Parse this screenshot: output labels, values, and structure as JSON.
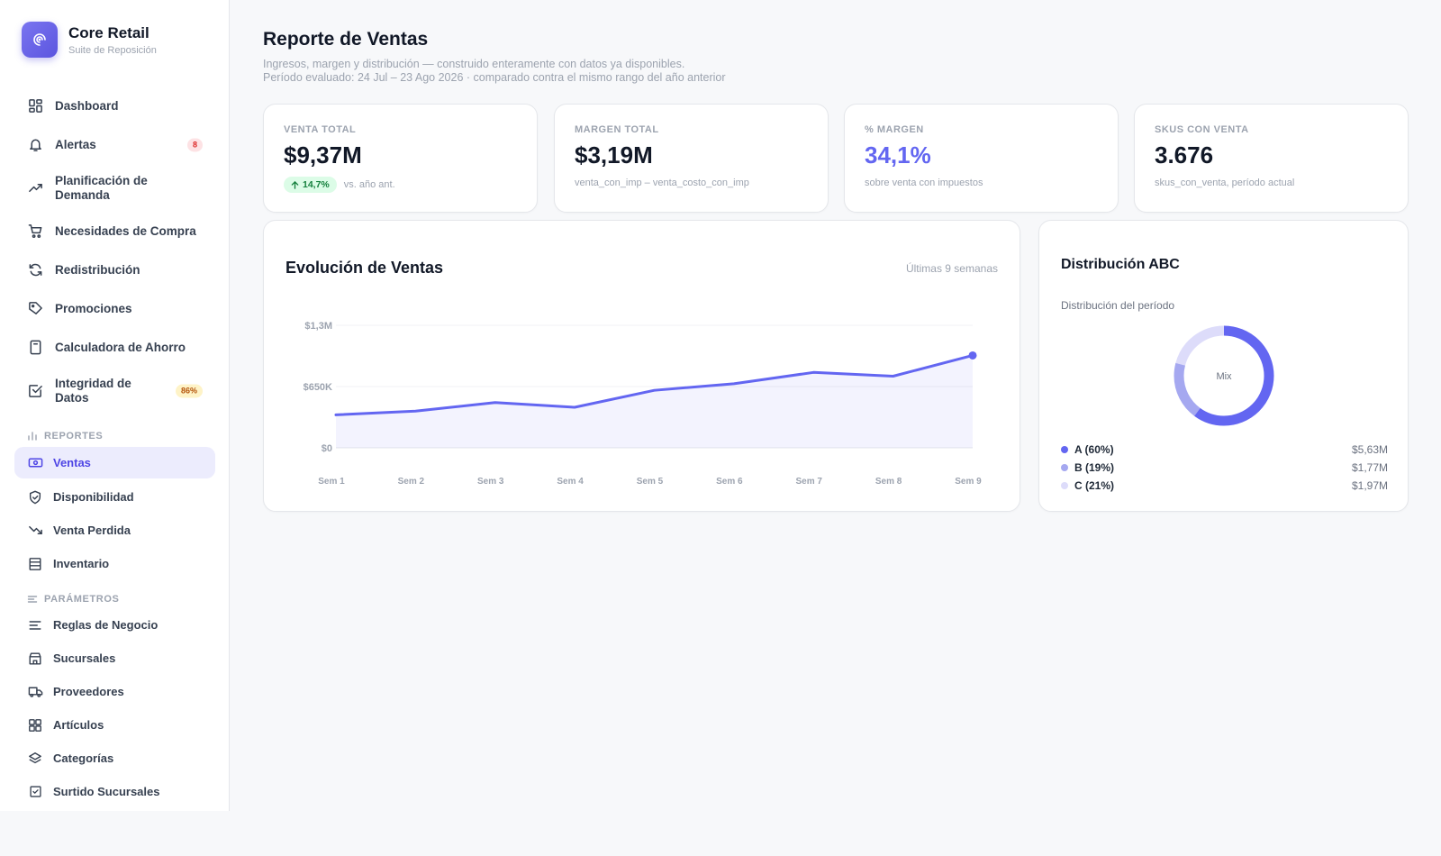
{
  "brand": {
    "name": "Core Retail",
    "subtitle": "Suite de Reposición"
  },
  "nav": {
    "main": [
      {
        "label": "Dashboard",
        "icon": "dashboard-icon"
      },
      {
        "label": "Alertas",
        "icon": "bell-icon",
        "badge": "8"
      },
      {
        "label": "Planificación de Demanda",
        "icon": "trend-icon"
      },
      {
        "label": "Necesidades de Compra",
        "icon": "cart-icon"
      },
      {
        "label": "Redistribución",
        "icon": "refresh-icon"
      },
      {
        "label": "Promociones",
        "icon": "tag-icon"
      },
      {
        "label": "Calculadora de Ahorro",
        "icon": "calculator-icon"
      },
      {
        "label": "Integridad de Datos",
        "icon": "check-square-icon",
        "badge": "86%"
      }
    ],
    "reportes_heading": "REPORTES",
    "reportes": [
      {
        "label": "Ventas",
        "icon": "money-icon",
        "active": true
      },
      {
        "label": "Disponibilidad",
        "icon": "shield-icon"
      },
      {
        "label": "Venta Perdida",
        "icon": "trend-down-icon"
      },
      {
        "label": "Inventario",
        "icon": "database-icon"
      }
    ],
    "parametros_heading": "PARÁMETROS",
    "parametros": [
      {
        "label": "Reglas de Negocio",
        "icon": "lines-icon"
      },
      {
        "label": "Sucursales",
        "icon": "store-icon"
      },
      {
        "label": "Proveedores",
        "icon": "truck-icon"
      },
      {
        "label": "Artículos",
        "icon": "grid-icon"
      },
      {
        "label": "Categorías",
        "icon": "layers-icon"
      },
      {
        "label": "Surtido Sucursales",
        "icon": "checkbox-icon"
      }
    ]
  },
  "header": {
    "title": "Reporte de Ventas",
    "desc_line1": "Ingresos, margen y distribución — construido enteramente con datos ya disponibles.",
    "desc_line2": "Período evaluado: 24 Jul – 23 Ago 2026 · comparado contra el mismo rango del año anterior"
  },
  "kpis": {
    "venta_total": {
      "label": "VENTA TOTAL",
      "value": "$9,37M",
      "trend": "14,7%",
      "trend_note": "vs. año ant."
    },
    "margen_total": {
      "label": "MARGEN TOTAL",
      "value": "$3,19M",
      "note": "venta_con_imp – venta_costo_con_imp"
    },
    "pct_margen": {
      "label": "% MARGEN",
      "value": "34,1%",
      "note": "sobre venta con impuestos"
    },
    "skus": {
      "label": "SKUS CON VENTA",
      "value": "3.676",
      "note": "skus_con_venta, período actual"
    }
  },
  "chart_data": {
    "type": "area",
    "title": "Evolución de Ventas",
    "subtitle": "Últimas 9 semanas",
    "categories": [
      "Sem 1",
      "Sem 2",
      "Sem 3",
      "Sem 4",
      "Sem 5",
      "Sem 6",
      "Sem 7",
      "Sem 8",
      "Sem 9"
    ],
    "values": [
      350000,
      390000,
      480000,
      430000,
      610000,
      680000,
      800000,
      760000,
      980000
    ],
    "ylim": [
      0,
      1300000
    ],
    "yticks": [
      0,
      650000,
      1300000
    ],
    "ytick_labels": [
      "$0",
      "$650K",
      "$1,3M"
    ],
    "color": "#6366f1",
    "grid": true
  },
  "abc": {
    "title": "Distribución ABC",
    "subtitle": "Distribución del período",
    "center_label": "Mix",
    "segments": [
      {
        "label": "A (60%)",
        "pct": 60,
        "value": "$5,63M",
        "color": "#6366f1"
      },
      {
        "label": "B (19%)",
        "pct": 19,
        "value": "$1,77M",
        "color": "#a5a8f0"
      },
      {
        "label": "C (21%)",
        "pct": 21,
        "value": "$1,97M",
        "color": "#dddcfa"
      }
    ]
  }
}
